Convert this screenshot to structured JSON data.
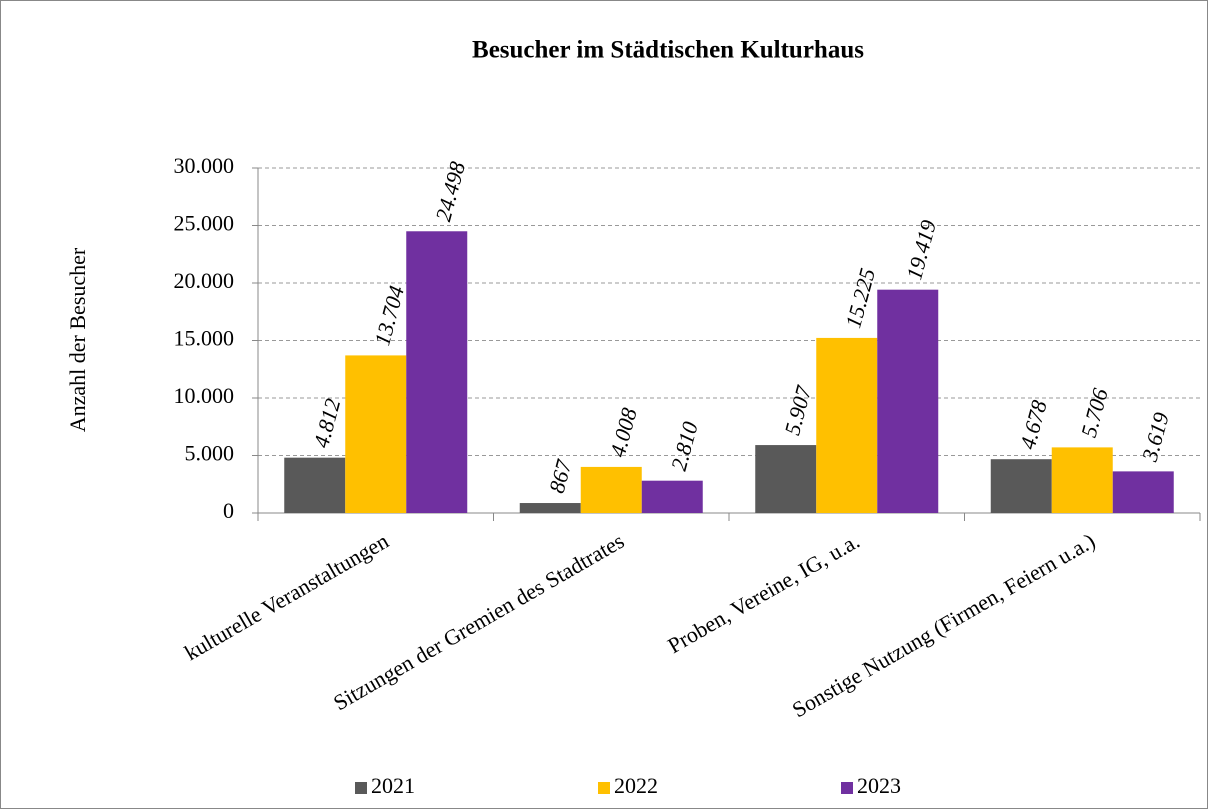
{
  "chart_data": {
    "type": "bar",
    "title": "Besucher im Städtischen Kulturhaus",
    "y_label": "Anzahl  der Besucher",
    "categories": [
      "kulturelle Veranstaltungen",
      "Sitzungen der Gremien des Stadtrates",
      "Proben, Vereine, IG, u.a.",
      "Sonstige Nutzung (Firmen, Feiern u.a.)"
    ],
    "series": [
      {
        "name": "2021",
        "color": "#595959",
        "values": [
          4812,
          867,
          5907,
          4678
        ],
        "value_labels": [
          "4.812",
          "867",
          "5.907",
          "4.678"
        ]
      },
      {
        "name": "2022",
        "color": "#ffc000",
        "values": [
          13704,
          4008,
          15225,
          5706
        ],
        "value_labels": [
          "13.704",
          "4.008",
          "15.225",
          "5.706"
        ]
      },
      {
        "name": "2023",
        "color": "#7030a0",
        "values": [
          24498,
          2810,
          19419,
          3619
        ],
        "value_labels": [
          "24.498",
          "2.810",
          "19.419",
          "3.619"
        ]
      }
    ],
    "ylim": [
      0,
      30000
    ],
    "yticks": [
      0,
      {
        "value": 5000,
        "label": "5.000"
      },
      {
        "value": 10000,
        "label": "10.000"
      },
      {
        "value": 15000,
        "label": "15.000"
      },
      {
        "value": 20000,
        "label": "20.000"
      },
      {
        "value": 25000,
        "label": "25.000"
      },
      {
        "value": 30000,
        "label": "30.000"
      }
    ],
    "grid": true,
    "legend": "bottom"
  }
}
